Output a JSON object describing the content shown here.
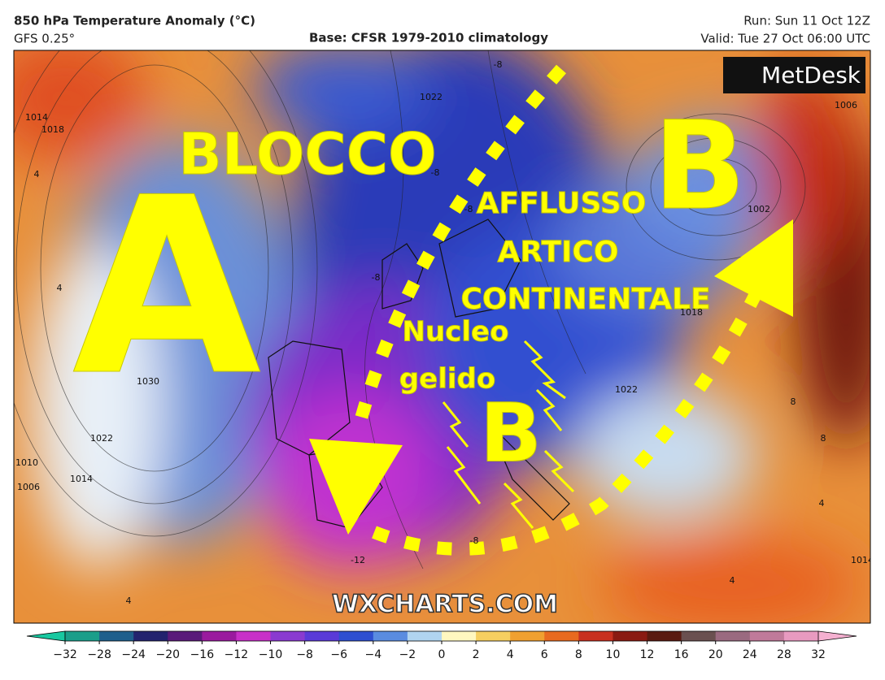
{
  "header": {
    "title": "850 hPa Temperature Anomaly (°C)",
    "model": "GFS 0.25°",
    "base": "Base: CFSR 1979-2010 climatology",
    "run": "Run: Sun 11 Oct 12Z",
    "valid": "Valid: Tue 27 Oct 06:00 UTC"
  },
  "logo": "MetDesk",
  "watermark": "WXCHARTS.COM",
  "annotations": [
    "BLOCCO",
    "A",
    "B",
    "AFFLUSSO",
    "ARTICO",
    "CONTINENTALE",
    "Nucleo",
    "gelido",
    "B"
  ],
  "map_labels": [
    "1014",
    "1018",
    "1030",
    "1022",
    "1010",
    "1006",
    "1014",
    "1022",
    "1002",
    "1006",
    "1018",
    "1022",
    "1014",
    "-8",
    "-8",
    "-8",
    "-8",
    "-12",
    "-8",
    "4",
    "4",
    "4",
    "8",
    "8",
    "4",
    "4"
  ],
  "colorbar": {
    "ticks": [
      {
        "value": -32,
        "label": "−32"
      },
      {
        "value": -28,
        "label": "−28"
      },
      {
        "value": -24,
        "label": "−24"
      },
      {
        "value": -20,
        "label": "−20"
      },
      {
        "value": -16,
        "label": "−16"
      },
      {
        "value": -12,
        "label": "−12"
      },
      {
        "value": -10,
        "label": "−10"
      },
      {
        "value": -8,
        "label": "−8"
      },
      {
        "value": -6,
        "label": "−6"
      },
      {
        "value": -4,
        "label": "−4"
      },
      {
        "value": -2,
        "label": "−2"
      },
      0,
      2,
      4,
      6,
      8,
      10,
      12,
      16,
      20,
      24,
      28,
      32
    ],
    "colors": [
      "#1a9e8a",
      "#1f5f8c",
      "#23236e",
      "#5a1a7a",
      "#9a1a9e",
      "#c830c8",
      "#8a3ad0",
      "#5a3ad8",
      "#2e4fd0",
      "#5a8ce0",
      "#b0d4f0",
      "#fff7c0",
      "#f6cf60",
      "#f0a030",
      "#e86a20",
      "#c83020",
      "#8a1a12",
      "#5a1a10",
      "#6a5050",
      "#9a6a80",
      "#c07a9a",
      "#e89ac0"
    ],
    "under_color": "#18c8a0",
    "over_color": "#f4b0d0"
  }
}
